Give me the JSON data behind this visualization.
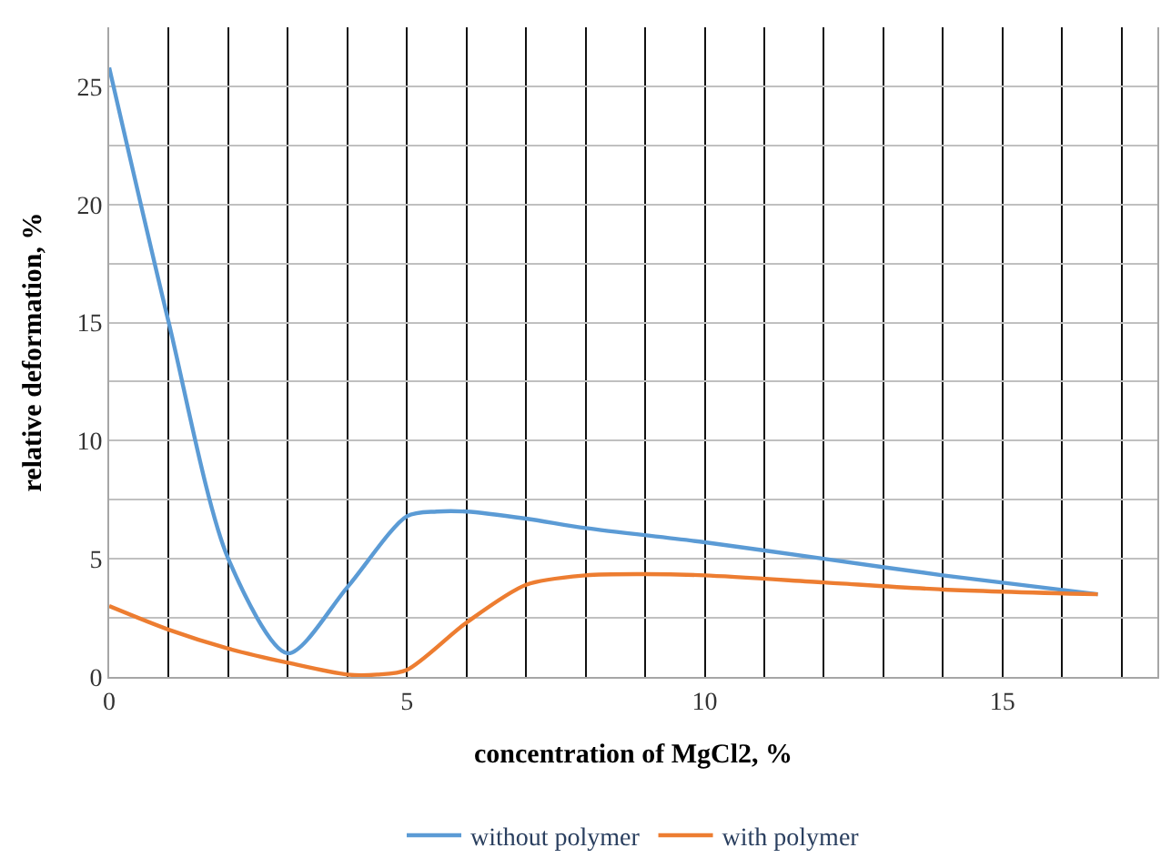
{
  "chart_data": {
    "type": "line",
    "xlabel": "concentration of MgCl2, %",
    "ylabel": "relative deformation, %",
    "xlim": [
      0,
      17.6
    ],
    "xticks": [
      0,
      5,
      10,
      15,
      {
        "value": 1,
        "label": null
      },
      {
        "value": 2,
        "label": null
      },
      {
        "value": 3,
        "label": null
      },
      {
        "value": 4,
        "label": null
      },
      {
        "value": 6,
        "label": null
      },
      {
        "value": 7,
        "label": null
      },
      {
        "value": 8,
        "label": null
      },
      {
        "value": 9,
        "label": null
      },
      {
        "value": 11,
        "label": null
      },
      {
        "value": 12,
        "label": null
      },
      {
        "value": 13,
        "label": null
      },
      {
        "value": 14,
        "label": null
      },
      {
        "value": 16,
        "label": null
      },
      {
        "value": 17,
        "label": null
      }
    ],
    "ylim": [
      0,
      27.5
    ],
    "yticks": [
      0,
      5,
      10,
      15,
      20,
      25,
      {
        "value": 2.5,
        "label": null
      },
      {
        "value": 7.5,
        "label": null
      },
      {
        "value": 12.5,
        "label": null
      },
      {
        "value": 17.5,
        "label": null
      },
      {
        "value": 22.5,
        "label": null
      }
    ],
    "grid": true,
    "legend": "bottom",
    "marker": "none",
    "line_style": "solid",
    "series": [
      {
        "name": "without polymer",
        "color": "#5b9bd5",
        "x": [
          0,
          1,
          2,
          3,
          4,
          5,
          5.5,
          6,
          7,
          8,
          10,
          12,
          14,
          16.6
        ],
        "values": [
          25.8,
          15,
          5,
          1,
          3.8,
          6.8,
          7,
          7,
          6.7,
          6.3,
          5.7,
          5.0,
          4.3,
          3.5
        ]
      },
      {
        "name": "with polymer",
        "color": "#ed7d31",
        "x": [
          0,
          1,
          2,
          3,
          4,
          4.5,
          5,
          6,
          7,
          8,
          9,
          10,
          12,
          14,
          16.6
        ],
        "values": [
          3,
          2,
          1.2,
          0.6,
          0.1,
          0.1,
          0.3,
          2.3,
          3.9,
          4.3,
          4.35,
          4.3,
          4.0,
          3.7,
          3.5
        ]
      }
    ]
  }
}
